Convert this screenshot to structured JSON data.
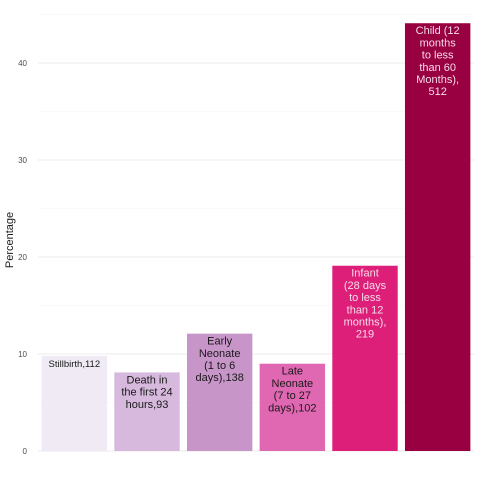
{
  "chart_data": {
    "type": "bar",
    "title": "",
    "xlabel": "",
    "ylabel": "Percentage",
    "ylim": [
      0,
      44
    ],
    "yticks": [
      0,
      10,
      20,
      30,
      40
    ],
    "grid": true,
    "legend": "none",
    "categories": [
      "Stillbirth",
      "Death in the first 24 hours",
      "Early Neonate (1 to 6 days)",
      "Late Neonate (7 to 27 days)",
      "Infant (28 days to less than 12 months)",
      "Child (12 months to less than 60 Months)"
    ],
    "values": [
      9.8,
      8.1,
      12.1,
      9.0,
      19.1,
      44.1
    ],
    "counts": [
      112,
      93,
      138,
      102,
      219,
      512
    ],
    "labels": [
      [
        "Stillbirth,112"
      ],
      [
        "Death in",
        "the first 24",
        "hours,93"
      ],
      [
        "Early",
        "Neonate",
        "(1 to 6",
        "days),138"
      ],
      [
        "Late",
        "Neonate",
        "(7 to 27",
        "days),102"
      ],
      [
        "Infant",
        "(28 days",
        "to less",
        "than 12",
        "months),",
        "219"
      ],
      [
        "Child (12",
        "months",
        "to less",
        "than 60",
        "Months),",
        "512"
      ]
    ],
    "colors": [
      "#efeaf3",
      "#d6b9dc",
      "#c895c9",
      "#e067b1",
      "#dd1f7a",
      "#990041"
    ],
    "label_colors": [
      "#1a1a1a",
      "#1a1a1a",
      "#1a1a1a",
      "#1a1a1a",
      "#f7dbe7",
      "#f7dbe7"
    ]
  }
}
